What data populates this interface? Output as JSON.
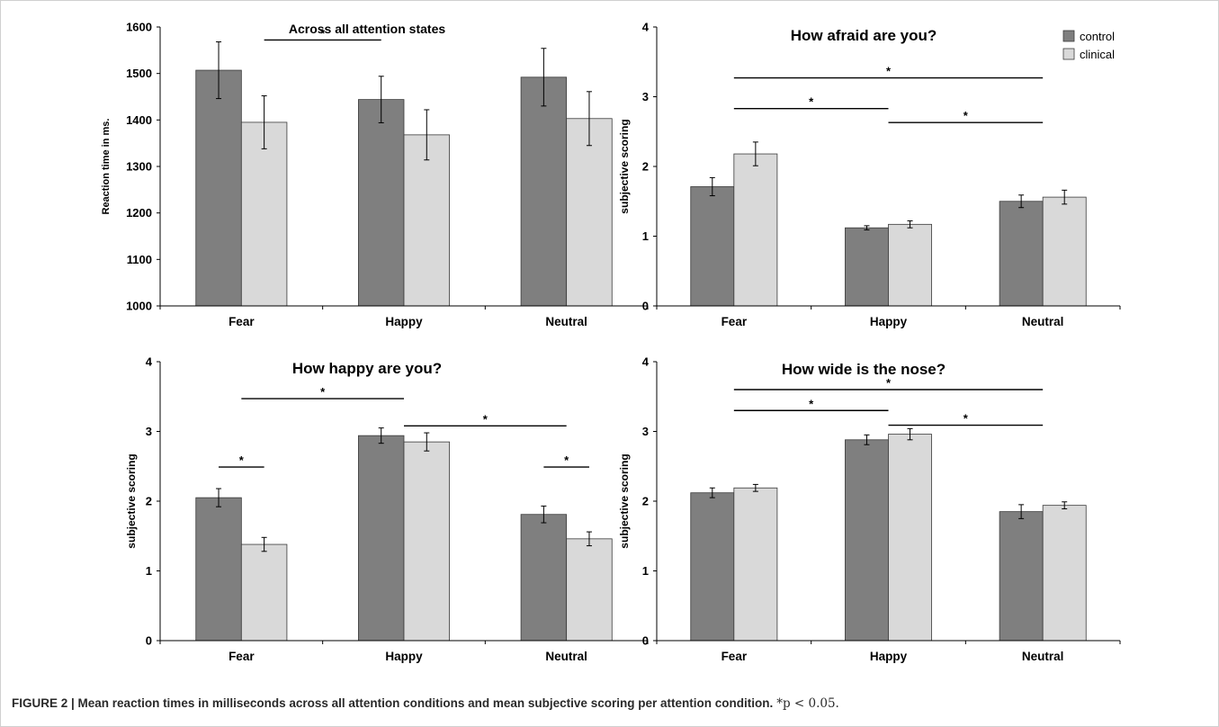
{
  "colors": {
    "control": "#7f7f7f",
    "clinical": "#d9d9d9",
    "axis": "#000000",
    "bar_stroke": "#3a3a3a"
  },
  "legend": {
    "items": [
      "control",
      "clinical"
    ]
  },
  "caption": {
    "bold": "FIGURE 2 | Mean reaction times in milliseconds across all attention conditions and mean subjective scoring per attention condition.",
    "note": "*p < 0.05."
  },
  "chart_data": [
    {
      "type": "bar",
      "title": "Across all attention states",
      "xlabel": "",
      "ylabel": "Reaction time in ms.",
      "ylim": [
        1000,
        1600
      ],
      "yticks": [
        1000,
        1100,
        1200,
        1300,
        1400,
        1500,
        1600
      ],
      "categories": [
        "Fear",
        "Happy",
        "Neutral"
      ],
      "series": [
        {
          "name": "control",
          "values": [
            1507,
            1444,
            1492
          ],
          "errors": [
            61,
            50,
            62
          ]
        },
        {
          "name": "clinical",
          "values": [
            1395,
            1368,
            1403
          ],
          "errors": [
            57,
            54,
            58
          ]
        }
      ],
      "significance": [
        {
          "from": [
            "Fear",
            "clinical"
          ],
          "to": [
            "Happy",
            "control"
          ],
          "y": 1572,
          "label": "*"
        }
      ],
      "grid": false
    },
    {
      "type": "bar",
      "title": "How afraid are you?",
      "xlabel": "",
      "ylabel": "subjective scoring",
      "ylim": [
        0,
        4
      ],
      "yticks": [
        0,
        1,
        2,
        3,
        4
      ],
      "categories": [
        "Fear",
        "Happy",
        "Neutral"
      ],
      "series": [
        {
          "name": "control",
          "values": [
            1.71,
            1.12,
            1.5
          ],
          "errors": [
            0.13,
            0.03,
            0.09
          ]
        },
        {
          "name": "clinical",
          "values": [
            2.18,
            1.17,
            1.56
          ],
          "errors": [
            0.17,
            0.05,
            0.1
          ]
        }
      ],
      "significance": [
        {
          "from": [
            "Fear",
            "center"
          ],
          "to": [
            "Neutral",
            "center"
          ],
          "y": 3.27,
          "label": "*"
        },
        {
          "from": [
            "Fear",
            "center"
          ],
          "to": [
            "Happy",
            "center"
          ],
          "y": 2.83,
          "label": "*"
        },
        {
          "from": [
            "Happy",
            "center"
          ],
          "to": [
            "Neutral",
            "center"
          ],
          "y": 2.63,
          "label": "*"
        }
      ],
      "grid": false,
      "legend": "top-right"
    },
    {
      "type": "bar",
      "title": "How happy are you?",
      "xlabel": "",
      "ylabel": "subjective scoring",
      "ylim": [
        0,
        4
      ],
      "yticks": [
        0,
        1,
        2,
        3,
        4
      ],
      "categories": [
        "Fear",
        "Happy",
        "Neutral"
      ],
      "series": [
        {
          "name": "control",
          "values": [
            2.05,
            2.94,
            1.81
          ],
          "errors": [
            0.13,
            0.11,
            0.12
          ]
        },
        {
          "name": "clinical",
          "values": [
            1.38,
            2.85,
            1.46
          ],
          "errors": [
            0.1,
            0.13,
            0.1
          ]
        }
      ],
      "significance": [
        {
          "from": [
            "Fear",
            "center"
          ],
          "to": [
            "Happy",
            "center"
          ],
          "y": 3.47,
          "label": "*"
        },
        {
          "from": [
            "Happy",
            "center"
          ],
          "to": [
            "Neutral",
            "center"
          ],
          "y": 3.08,
          "label": "*"
        },
        {
          "from": [
            "Fear",
            "control"
          ],
          "to": [
            "Fear",
            "clinical"
          ],
          "y": 2.49,
          "label": "*"
        },
        {
          "from": [
            "Neutral",
            "control"
          ],
          "to": [
            "Neutral",
            "clinical"
          ],
          "y": 2.49,
          "label": "*"
        }
      ],
      "grid": false
    },
    {
      "type": "bar",
      "title": "How wide is the nose?",
      "xlabel": "",
      "ylabel": "subjective scoring",
      "ylim": [
        0,
        4
      ],
      "yticks": [
        0,
        1,
        2,
        3,
        4
      ],
      "categories": [
        "Fear",
        "Happy",
        "Neutral"
      ],
      "series": [
        {
          "name": "control",
          "values": [
            2.12,
            2.88,
            1.85
          ],
          "errors": [
            0.07,
            0.07,
            0.1
          ]
        },
        {
          "name": "clinical",
          "values": [
            2.19,
            2.96,
            1.94
          ],
          "errors": [
            0.05,
            0.08,
            0.05
          ]
        }
      ],
      "significance": [
        {
          "from": [
            "Fear",
            "center"
          ],
          "to": [
            "Neutral",
            "center"
          ],
          "y": 3.6,
          "label": "*"
        },
        {
          "from": [
            "Fear",
            "center"
          ],
          "to": [
            "Happy",
            "center"
          ],
          "y": 3.3,
          "label": "*"
        },
        {
          "from": [
            "Happy",
            "center"
          ],
          "to": [
            "Neutral",
            "center"
          ],
          "y": 3.09,
          "label": "*"
        }
      ],
      "grid": false
    }
  ]
}
